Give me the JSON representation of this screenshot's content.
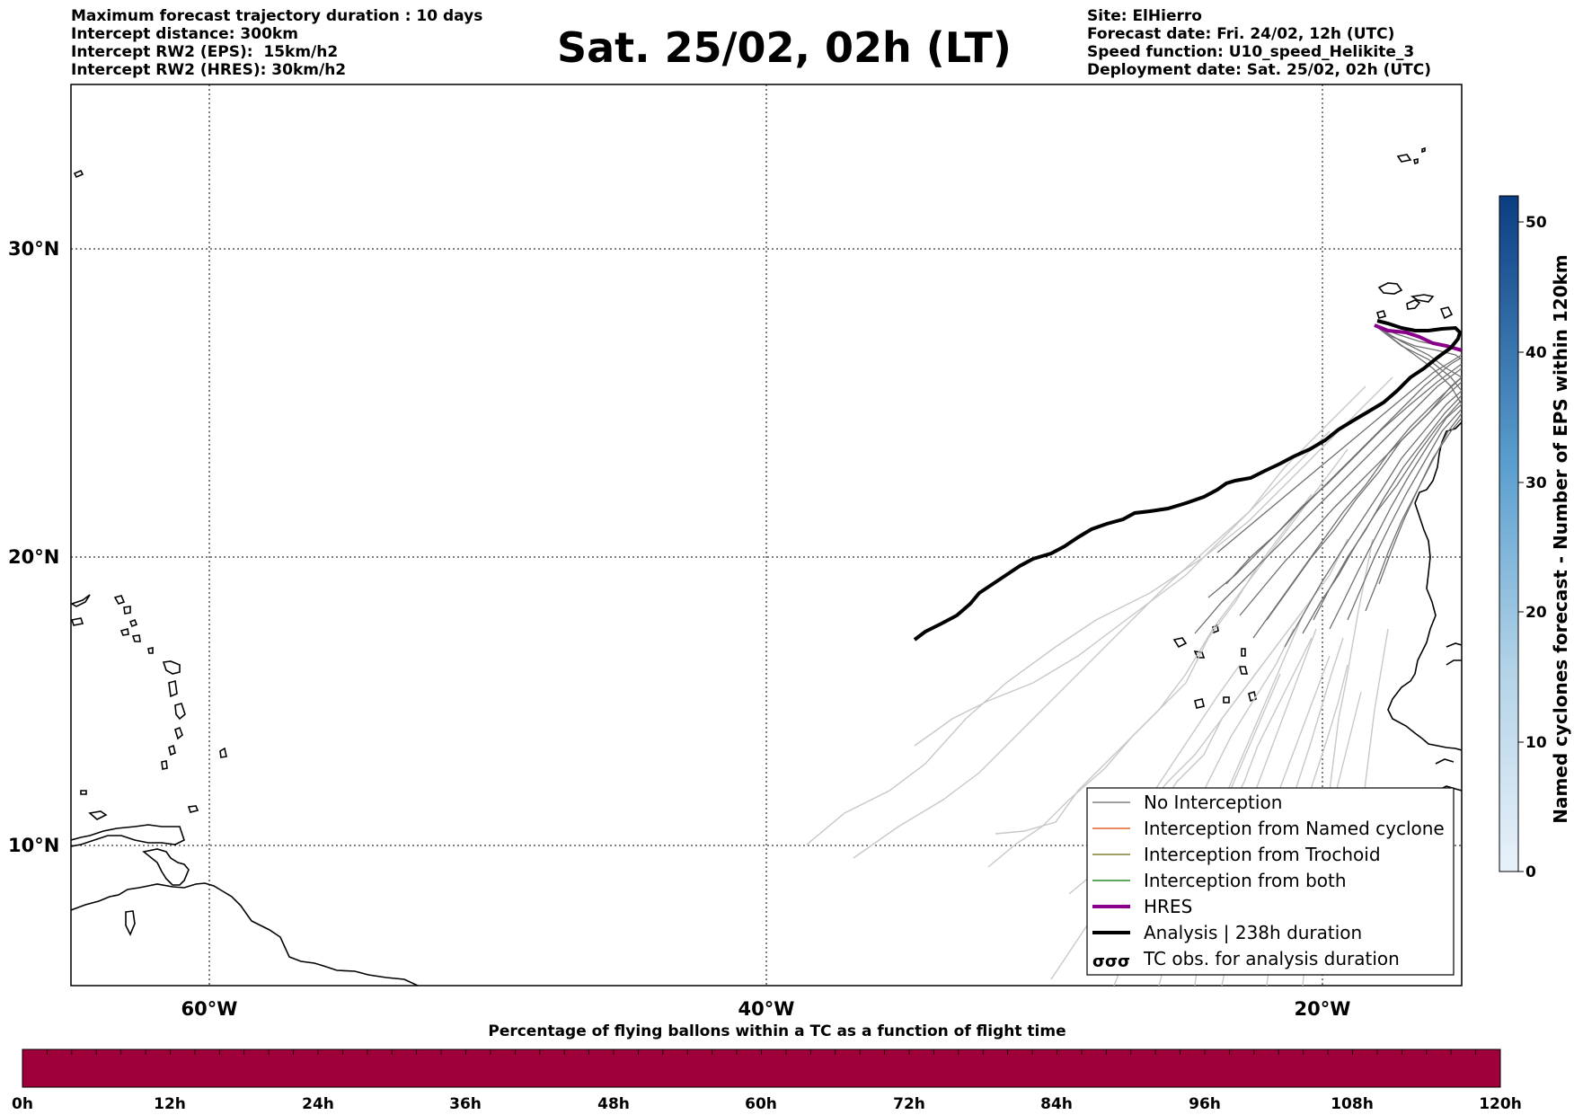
{
  "header_left": [
    "Maximum forecast trajectory duration : 10 days",
    "Intercept distance: 300km",
    "Intercept RW2 (EPS):  15km/h2",
    "Intercept RW2 (HRES): 30km/h2"
  ],
  "title": "Sat. 25/02, 02h (LT)",
  "header_right": [
    "Site: ElHierro",
    "Forecast date: Fri. 24/02, 12h (UTC)",
    "Speed function: U10_speed_Helikite_3",
    "Deployment date: Sat. 25/02, 02h (UTC)"
  ],
  "map": {
    "lat_labels": [
      "30°N",
      "20°N",
      "10°N"
    ],
    "lon_labels": [
      "60°W",
      "40°W",
      "20°W"
    ]
  },
  "colorbar_right": {
    "label": "Named cyclones forecast - Number of EPS within 120km",
    "ticks": [
      "0",
      "10",
      "20",
      "30",
      "40",
      "50"
    ],
    "range": [
      0,
      52
    ]
  },
  "legend": [
    {
      "label": "No Interception",
      "color": "#808080"
    },
    {
      "label": "Interception from Named cyclone",
      "color": "#e0622a"
    },
    {
      "label": "Interception from Trochoid",
      "color": "#808030"
    },
    {
      "label": "Interception from both",
      "color": "#2a8a2a"
    },
    {
      "label": "HRES",
      "color": "#8b008b"
    },
    {
      "label": "Analysis | 238h duration",
      "color": "#000000"
    },
    {
      "label": "TC obs. for analysis duration",
      "icon": "cyclone-symbols-icon"
    }
  ],
  "bottom_bar": {
    "title": "Percentage of flying ballons within a TC as a function of flight time",
    "ticks": [
      "0h",
      "12h",
      "24h",
      "36h",
      "48h",
      "60h",
      "72h",
      "84h",
      "96h",
      "108h",
      "120h"
    ],
    "color": "#a0003a"
  }
}
